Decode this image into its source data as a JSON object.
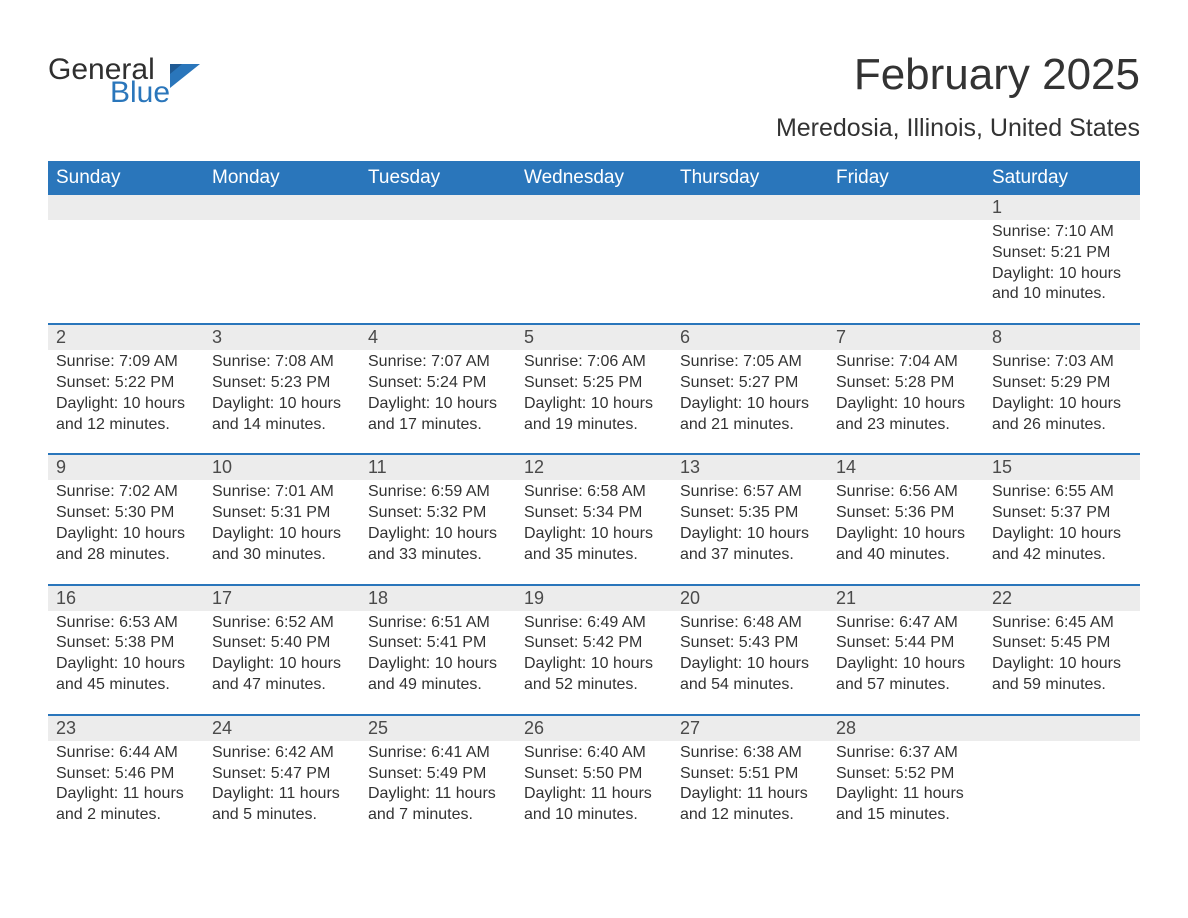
{
  "logo": {
    "general": "General",
    "blue": "Blue"
  },
  "title": "February 2025",
  "location": "Meredosia, Illinois, United States",
  "colors": {
    "header_bg": "#2a76bb",
    "header_text": "#ffffff",
    "daynum_bg": "#ececec",
    "row_border": "#2a76bb",
    "body_text": "#333333",
    "logo_blue": "#2a76bb",
    "logo_dark": "#2f2f2f",
    "page_bg": "#ffffff"
  },
  "weekdays": [
    "Sunday",
    "Monday",
    "Tuesday",
    "Wednesday",
    "Thursday",
    "Friday",
    "Saturday"
  ],
  "weeks": [
    [
      null,
      null,
      null,
      null,
      null,
      null,
      {
        "n": "1",
        "sr": "Sunrise: 7:10 AM",
        "ss": "Sunset: 5:21 PM",
        "dl": "Daylight: 10 hours and 10 minutes."
      }
    ],
    [
      {
        "n": "2",
        "sr": "Sunrise: 7:09 AM",
        "ss": "Sunset: 5:22 PM",
        "dl": "Daylight: 10 hours and 12 minutes."
      },
      {
        "n": "3",
        "sr": "Sunrise: 7:08 AM",
        "ss": "Sunset: 5:23 PM",
        "dl": "Daylight: 10 hours and 14 minutes."
      },
      {
        "n": "4",
        "sr": "Sunrise: 7:07 AM",
        "ss": "Sunset: 5:24 PM",
        "dl": "Daylight: 10 hours and 17 minutes."
      },
      {
        "n": "5",
        "sr": "Sunrise: 7:06 AM",
        "ss": "Sunset: 5:25 PM",
        "dl": "Daylight: 10 hours and 19 minutes."
      },
      {
        "n": "6",
        "sr": "Sunrise: 7:05 AM",
        "ss": "Sunset: 5:27 PM",
        "dl": "Daylight: 10 hours and 21 minutes."
      },
      {
        "n": "7",
        "sr": "Sunrise: 7:04 AM",
        "ss": "Sunset: 5:28 PM",
        "dl": "Daylight: 10 hours and 23 minutes."
      },
      {
        "n": "8",
        "sr": "Sunrise: 7:03 AM",
        "ss": "Sunset: 5:29 PM",
        "dl": "Daylight: 10 hours and 26 minutes."
      }
    ],
    [
      {
        "n": "9",
        "sr": "Sunrise: 7:02 AM",
        "ss": "Sunset: 5:30 PM",
        "dl": "Daylight: 10 hours and 28 minutes."
      },
      {
        "n": "10",
        "sr": "Sunrise: 7:01 AM",
        "ss": "Sunset: 5:31 PM",
        "dl": "Daylight: 10 hours and 30 minutes."
      },
      {
        "n": "11",
        "sr": "Sunrise: 6:59 AM",
        "ss": "Sunset: 5:32 PM",
        "dl": "Daylight: 10 hours and 33 minutes."
      },
      {
        "n": "12",
        "sr": "Sunrise: 6:58 AM",
        "ss": "Sunset: 5:34 PM",
        "dl": "Daylight: 10 hours and 35 minutes."
      },
      {
        "n": "13",
        "sr": "Sunrise: 6:57 AM",
        "ss": "Sunset: 5:35 PM",
        "dl": "Daylight: 10 hours and 37 minutes."
      },
      {
        "n": "14",
        "sr": "Sunrise: 6:56 AM",
        "ss": "Sunset: 5:36 PM",
        "dl": "Daylight: 10 hours and 40 minutes."
      },
      {
        "n": "15",
        "sr": "Sunrise: 6:55 AM",
        "ss": "Sunset: 5:37 PM",
        "dl": "Daylight: 10 hours and 42 minutes."
      }
    ],
    [
      {
        "n": "16",
        "sr": "Sunrise: 6:53 AM",
        "ss": "Sunset: 5:38 PM",
        "dl": "Daylight: 10 hours and 45 minutes."
      },
      {
        "n": "17",
        "sr": "Sunrise: 6:52 AM",
        "ss": "Sunset: 5:40 PM",
        "dl": "Daylight: 10 hours and 47 minutes."
      },
      {
        "n": "18",
        "sr": "Sunrise: 6:51 AM",
        "ss": "Sunset: 5:41 PM",
        "dl": "Daylight: 10 hours and 49 minutes."
      },
      {
        "n": "19",
        "sr": "Sunrise: 6:49 AM",
        "ss": "Sunset: 5:42 PM",
        "dl": "Daylight: 10 hours and 52 minutes."
      },
      {
        "n": "20",
        "sr": "Sunrise: 6:48 AM",
        "ss": "Sunset: 5:43 PM",
        "dl": "Daylight: 10 hours and 54 minutes."
      },
      {
        "n": "21",
        "sr": "Sunrise: 6:47 AM",
        "ss": "Sunset: 5:44 PM",
        "dl": "Daylight: 10 hours and 57 minutes."
      },
      {
        "n": "22",
        "sr": "Sunrise: 6:45 AM",
        "ss": "Sunset: 5:45 PM",
        "dl": "Daylight: 10 hours and 59 minutes."
      }
    ],
    [
      {
        "n": "23",
        "sr": "Sunrise: 6:44 AM",
        "ss": "Sunset: 5:46 PM",
        "dl": "Daylight: 11 hours and 2 minutes."
      },
      {
        "n": "24",
        "sr": "Sunrise: 6:42 AM",
        "ss": "Sunset: 5:47 PM",
        "dl": "Daylight: 11 hours and 5 minutes."
      },
      {
        "n": "25",
        "sr": "Sunrise: 6:41 AM",
        "ss": "Sunset: 5:49 PM",
        "dl": "Daylight: 11 hours and 7 minutes."
      },
      {
        "n": "26",
        "sr": "Sunrise: 6:40 AM",
        "ss": "Sunset: 5:50 PM",
        "dl": "Daylight: 11 hours and 10 minutes."
      },
      {
        "n": "27",
        "sr": "Sunrise: 6:38 AM",
        "ss": "Sunset: 5:51 PM",
        "dl": "Daylight: 11 hours and 12 minutes."
      },
      {
        "n": "28",
        "sr": "Sunrise: 6:37 AM",
        "ss": "Sunset: 5:52 PM",
        "dl": "Daylight: 11 hours and 15 minutes."
      },
      null
    ]
  ]
}
